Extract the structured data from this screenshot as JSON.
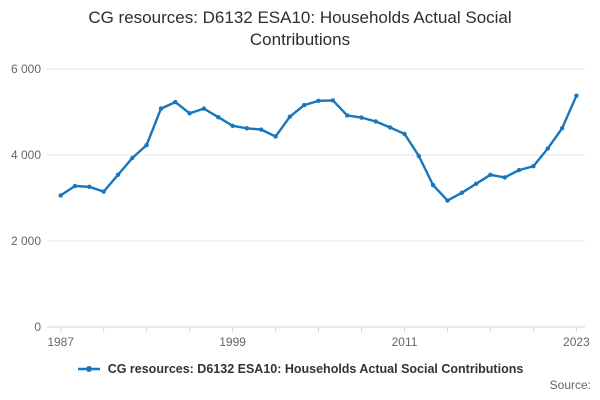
{
  "title": "CG resources: D6132 ESA10: Households Actual Social Contributions",
  "legend": {
    "label": "CG resources: D6132 ESA10: Households Actual Social Contributions",
    "marker": "line-with-dot"
  },
  "footer": {
    "source_label": "Source:"
  },
  "colors": {
    "series": "#1776bc",
    "grid": "#e6e6e6",
    "axis": "#ccd6eb",
    "title_text": "#2e2e2e",
    "tick_text": "#666666",
    "legend_text": "#333333"
  },
  "chart_data": {
    "type": "line",
    "title": "CG resources: D6132 ESA10: Households Actual Social Contributions",
    "xlabel": "",
    "ylabel": "",
    "xlim": [
      1987,
      2023
    ],
    "ylim": [
      0,
      6000
    ],
    "grid": "horizontal",
    "legend_position": "bottom",
    "x": [
      1987,
      1988,
      1989,
      1990,
      1991,
      1992,
      1993,
      1994,
      1995,
      1996,
      1997,
      1998,
      1999,
      2000,
      2001,
      2002,
      2003,
      2004,
      2005,
      2006,
      2007,
      2008,
      2009,
      2010,
      2011,
      2012,
      2013,
      2014,
      2015,
      2016,
      2017,
      2018,
      2019,
      2020,
      2021,
      2022,
      2023
    ],
    "series": [
      {
        "name": "CG resources: D6132 ESA10: Households Actual Social Contributions",
        "values": [
          3060,
          3280,
          3260,
          3150,
          3540,
          3930,
          4230,
          5080,
          5230,
          4970,
          5080,
          4880,
          4680,
          4620,
          4590,
          4430,
          4890,
          5160,
          5260,
          5270,
          4920,
          4870,
          4780,
          4640,
          4490,
          3980,
          3300,
          2940,
          3120,
          3330,
          3540,
          3480,
          3650,
          3740,
          4150,
          4620,
          5380
        ]
      }
    ],
    "y_ticks": [
      {
        "value": 0,
        "label": "0"
      },
      {
        "value": 2000,
        "label": "2 000"
      },
      {
        "value": 4000,
        "label": "4 000"
      },
      {
        "value": 6000,
        "label": "6 000"
      }
    ],
    "x_tick_step_years": 3,
    "x_labeled_ticks": [
      {
        "value": 1987,
        "label": "1987"
      },
      {
        "value": 1999,
        "label": "1999"
      },
      {
        "value": 2011,
        "label": "2011"
      },
      {
        "value": 2023,
        "label": "2023"
      }
    ]
  }
}
